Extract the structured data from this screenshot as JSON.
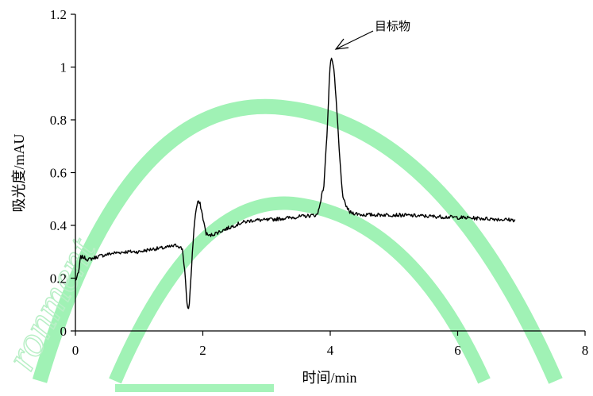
{
  "chart_data": {
    "type": "line",
    "xlabel": "时间/min",
    "ylabel": "吸光度/mAU",
    "xlim": [
      0,
      8
    ],
    "ylim": [
      0,
      1.2
    ],
    "x_ticks": [
      0,
      2,
      4,
      6,
      8
    ],
    "y_ticks": [
      0,
      0.2,
      0.4,
      0.6,
      0.8,
      1,
      1.2
    ],
    "x_tick_labels": [
      "0",
      "2",
      "4",
      "6",
      "8"
    ],
    "y_tick_labels": [
      "0",
      "0.2",
      "0.4",
      "0.6",
      "0.8",
      "1",
      "1.2"
    ],
    "grid": false,
    "legend": "none",
    "line_color": "#000000",
    "series": [
      {
        "x": [
          0,
          0.05,
          0.08,
          0.12,
          0.2,
          0.4,
          0.6,
          0.8,
          1.0,
          1.2,
          1.4,
          1.6,
          1.68,
          1.72,
          1.75,
          1.78,
          1.8,
          1.85,
          1.88,
          1.92,
          1.96,
          2.0,
          2.05,
          2.1,
          2.2,
          2.4,
          2.6,
          2.8,
          3.0,
          3.2,
          3.4,
          3.6,
          3.8,
          3.9,
          3.95,
          3.98,
          4.0,
          4.03,
          4.06,
          4.1,
          4.15,
          4.2,
          4.3,
          4.5,
          5.0,
          5.5,
          6.0,
          6.5,
          6.9
        ],
        "y": [
          0.19,
          0.22,
          0.28,
          0.28,
          0.27,
          0.285,
          0.295,
          0.3,
          0.3,
          0.31,
          0.315,
          0.325,
          0.31,
          0.22,
          0.1,
          0.08,
          0.15,
          0.35,
          0.44,
          0.49,
          0.48,
          0.43,
          0.37,
          0.36,
          0.37,
          0.39,
          0.41,
          0.42,
          0.42,
          0.425,
          0.43,
          0.435,
          0.44,
          0.55,
          0.75,
          0.92,
          1.02,
          1.03,
          0.98,
          0.85,
          0.65,
          0.5,
          0.45,
          0.44,
          0.44,
          0.435,
          0.43,
          0.425,
          0.42
        ],
        "noise": 0.007
      }
    ],
    "annotations": [
      {
        "text": "目标物",
        "x": 4.05,
        "y": 1.03
      }
    ]
  },
  "watermark": {
    "text": "ronment",
    "color": "#b8efc6"
  }
}
